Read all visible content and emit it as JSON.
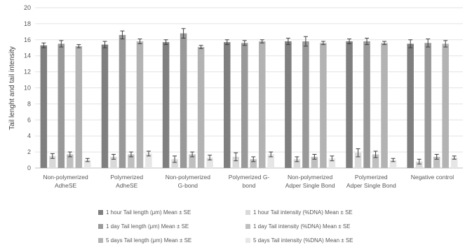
{
  "chart_data": {
    "type": "bar",
    "ylabel": "Tail lenght and tail intensity",
    "ylim": [
      0,
      20
    ],
    "yticks": [
      0,
      2,
      4,
      6,
      8,
      10,
      12,
      14,
      16,
      18,
      20
    ],
    "grid": true,
    "legend_position": "bottom",
    "categories": [
      [
        "Non-polymerized",
        "AdheSE"
      ],
      [
        "Polymerized",
        "AdheSE"
      ],
      [
        "Non-polymerized",
        "G-bond"
      ],
      [
        "Polymerized G-",
        "bond"
      ],
      [
        "Non-polymerized",
        "Adper Single Bond"
      ],
      [
        "Polymerized",
        "Adper Single Bond"
      ],
      [
        "Negative control"
      ]
    ],
    "series": [
      {
        "name": "1 hour Tail length (μm) Mean ± SE",
        "color": "#7f7f7f",
        "values": [
          15.3,
          15.4,
          15.7,
          15.7,
          15.8,
          15.8,
          15.5
        ],
        "errors": [
          0.3,
          0.4,
          0.3,
          0.3,
          0.4,
          0.3,
          0.5
        ]
      },
      {
        "name": "1 hour Tail intensity (%DNA) Mean ± SE",
        "color": "#d9d9d9",
        "values": [
          1.5,
          1.4,
          1.1,
          1.4,
          1.1,
          1.9,
          0.8
        ],
        "errors": [
          0.3,
          0.3,
          0.4,
          0.5,
          0.3,
          0.5,
          0.3
        ]
      },
      {
        "name": "1 day Tail length (μm) Mean ± SE",
        "color": "#999999",
        "values": [
          15.5,
          16.6,
          16.8,
          15.6,
          15.8,
          15.8,
          15.6
        ],
        "errors": [
          0.4,
          0.5,
          0.6,
          0.3,
          0.6,
          0.4,
          0.5
        ]
      },
      {
        "name": "1 day Tail intensity (%DNA) Mean ± SE",
        "color": "#bfbfbf",
        "values": [
          1.7,
          1.7,
          1.7,
          1.1,
          1.4,
          1.7,
          1.4
        ],
        "errors": [
          0.3,
          0.3,
          0.3,
          0.3,
          0.3,
          0.4,
          0.3
        ]
      },
      {
        "name": "5 days Tail length (μm) Mean ± SE",
        "color": "#b3b3b3",
        "values": [
          15.2,
          15.8,
          15.1,
          15.8,
          15.6,
          15.6,
          15.5
        ],
        "errors": [
          0.2,
          0.3,
          0.2,
          0.2,
          0.2,
          0.2,
          0.4
        ]
      },
      {
        "name": "5 days Tail intensity (%DNA) Mean ± SE",
        "color": "#e6e6e6",
        "values": [
          1.0,
          1.8,
          1.3,
          1.7,
          1.2,
          1.0,
          1.3
        ],
        "errors": [
          0.2,
          0.3,
          0.3,
          0.3,
          0.3,
          0.2,
          0.2
        ]
      }
    ]
  }
}
